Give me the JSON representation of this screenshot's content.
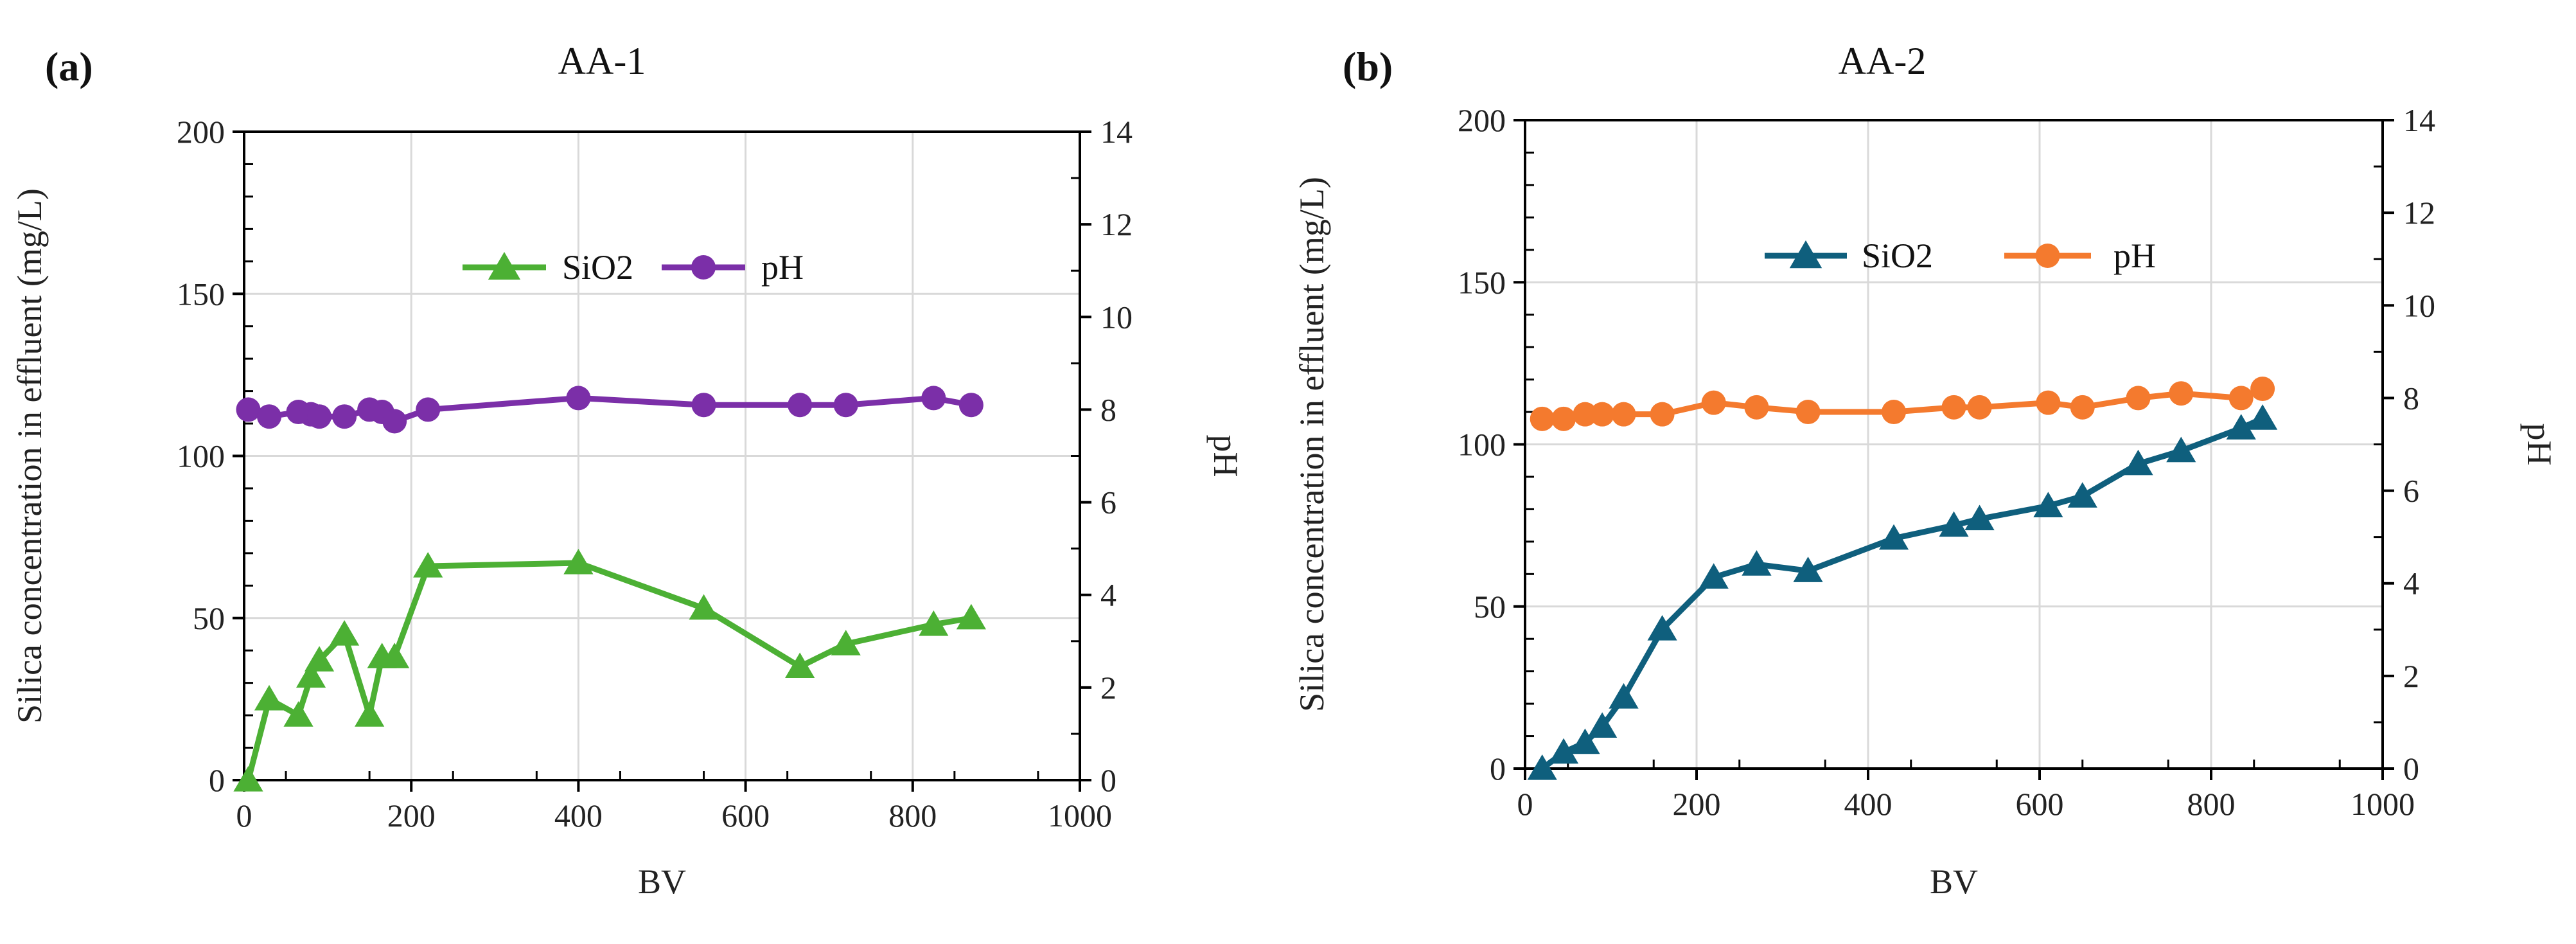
{
  "chart_data": [
    {
      "type": "line",
      "panel_label": "(a)",
      "title": "AA-1",
      "xlabel": "BV",
      "ylabel": "Silica concentration in effluent (mg/L)",
      "y2label": "pH",
      "xlim": [
        0,
        1000
      ],
      "ylim": [
        0,
        200
      ],
      "y2lim": [
        0,
        14
      ],
      "xticks": [
        "0",
        "200",
        "400",
        "600",
        "800",
        "1000"
      ],
      "yticks": [
        "0",
        "50",
        "100",
        "150",
        "200"
      ],
      "y2ticks": [
        "0",
        "2",
        "4",
        "6",
        "8",
        "10",
        "12",
        "14"
      ],
      "grid": true,
      "legend_position": "top-center",
      "series": [
        {
          "name": "SiO2",
          "axis": "left",
          "marker": "triangle",
          "color": "#4cb034",
          "x": [
            5,
            30,
            65,
            80,
            90,
            120,
            150,
            165,
            180,
            220,
            400,
            550,
            665,
            720,
            825,
            870
          ],
          "y": [
            0,
            25,
            20,
            32,
            37,
            45,
            20,
            38,
            38,
            66,
            67,
            53,
            35,
            42,
            48,
            50
          ]
        },
        {
          "name": "pH",
          "axis": "right",
          "marker": "circle",
          "color": "#7b2fa8",
          "x": [
            5,
            30,
            65,
            80,
            90,
            120,
            150,
            165,
            180,
            220,
            400,
            550,
            665,
            720,
            825,
            870
          ],
          "y": [
            8.0,
            7.85,
            7.95,
            7.9,
            7.85,
            7.85,
            8.0,
            7.95,
            7.75,
            8.0,
            8.25,
            8.1,
            8.1,
            8.1,
            8.25,
            8.1
          ]
        }
      ]
    },
    {
      "type": "line",
      "panel_label": "(b)",
      "title": "AA-2",
      "xlabel": "BV",
      "ylabel": "Silica concentration in effluent (mg/L)",
      "y2label": "pH",
      "xlim": [
        0,
        1000
      ],
      "ylim": [
        0,
        200
      ],
      "y2lim": [
        0,
        14
      ],
      "xticks": [
        "0",
        "200",
        "400",
        "600",
        "800",
        "1000"
      ],
      "yticks": [
        "0",
        "50",
        "100",
        "150",
        "200"
      ],
      "y2ticks": [
        "0",
        "2",
        "4",
        "6",
        "8",
        "10",
        "12",
        "14"
      ],
      "grid": true,
      "legend_position": "top-center",
      "series": [
        {
          "name": "SiO2",
          "axis": "left",
          "marker": "triangle",
          "color": "#0f5f7d",
          "x": [
            20,
            45,
            70,
            90,
            115,
            160,
            220,
            270,
            330,
            430,
            500,
            530,
            610,
            650,
            715,
            765,
            835,
            860
          ],
          "y": [
            0,
            5,
            8,
            13,
            22,
            43,
            59,
            63,
            61,
            71,
            75,
            77,
            81,
            84,
            94,
            98,
            105,
            108
          ]
        },
        {
          "name": "pH",
          "axis": "right",
          "marker": "circle",
          "color": "#f47a2e",
          "x": [
            20,
            45,
            70,
            90,
            115,
            160,
            220,
            270,
            330,
            430,
            500,
            530,
            610,
            650,
            715,
            765,
            835,
            860
          ],
          "y": [
            7.55,
            7.55,
            7.65,
            7.65,
            7.65,
            7.65,
            7.9,
            7.8,
            7.7,
            7.7,
            7.8,
            7.8,
            7.9,
            7.8,
            8.0,
            8.1,
            8.0,
            8.2
          ]
        }
      ]
    }
  ]
}
